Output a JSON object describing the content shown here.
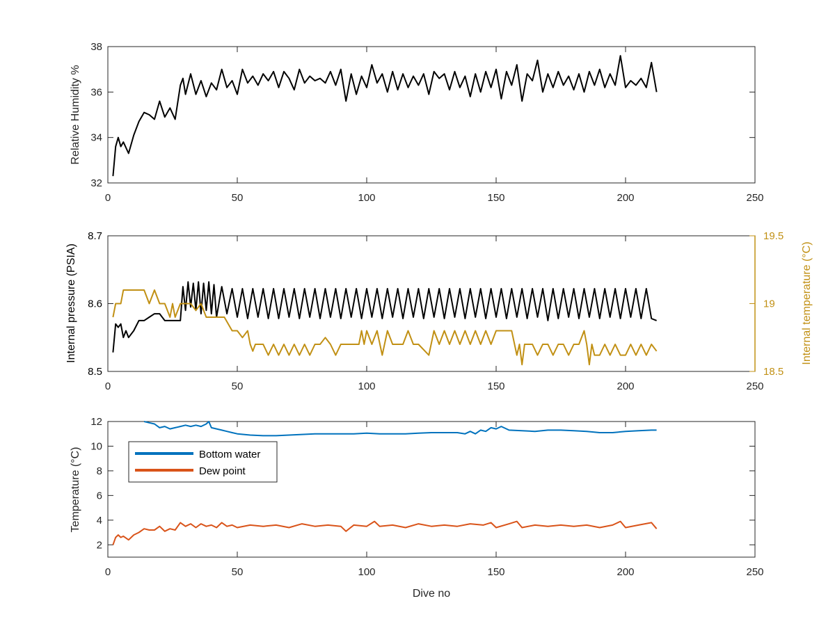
{
  "chart_data": [
    {
      "type": "line",
      "id": "humidity",
      "xlabel": "",
      "ylabel": "Relative Humidity %",
      "xlim": [
        0,
        250
      ],
      "ylim": [
        32,
        38
      ],
      "xticks": [
        0,
        50,
        100,
        150,
        200,
        250
      ],
      "yticks": [
        32,
        34,
        36,
        38
      ],
      "series": [
        {
          "color": "#000000",
          "x": [
            2,
            3,
            4,
            5,
            6,
            8,
            10,
            12,
            14,
            16,
            18,
            20,
            22,
            24,
            26,
            28,
            29,
            30,
            32,
            34,
            36,
            38,
            40,
            42,
            44,
            46,
            48,
            50,
            52,
            54,
            56,
            58,
            60,
            62,
            64,
            66,
            68,
            70,
            72,
            74,
            76,
            78,
            80,
            82,
            84,
            86,
            88,
            90,
            92,
            94,
            96,
            98,
            100,
            102,
            104,
            106,
            108,
            110,
            112,
            114,
            116,
            118,
            120,
            122,
            124,
            126,
            128,
            130,
            132,
            134,
            136,
            138,
            140,
            142,
            144,
            146,
            148,
            150,
            152,
            154,
            156,
            158,
            160,
            162,
            164,
            166,
            168,
            170,
            172,
            174,
            176,
            178,
            180,
            182,
            184,
            186,
            188,
            190,
            192,
            194,
            196,
            198,
            200,
            202,
            204,
            206,
            208,
            210,
            212
          ],
          "y": [
            32.3,
            33.6,
            34.0,
            33.6,
            33.8,
            33.3,
            34.1,
            34.7,
            35.1,
            35.0,
            34.8,
            35.6,
            34.9,
            35.3,
            34.8,
            36.3,
            36.6,
            35.9,
            36.8,
            35.9,
            36.5,
            35.8,
            36.4,
            36.1,
            37.0,
            36.2,
            36.5,
            35.9,
            37.0,
            36.4,
            36.7,
            36.3,
            36.8,
            36.5,
            36.9,
            36.2,
            36.9,
            36.6,
            36.1,
            37.0,
            36.4,
            36.7,
            36.5,
            36.6,
            36.4,
            36.9,
            36.3,
            37.0,
            35.6,
            36.8,
            35.9,
            36.7,
            36.2,
            37.2,
            36.4,
            36.8,
            36.0,
            36.9,
            36.1,
            36.8,
            36.2,
            36.7,
            36.3,
            36.8,
            35.9,
            36.9,
            36.6,
            36.8,
            36.1,
            36.9,
            36.2,
            36.7,
            35.8,
            36.8,
            36.0,
            36.9,
            36.2,
            37.0,
            35.7,
            36.9,
            36.3,
            37.2,
            35.6,
            36.8,
            36.5,
            37.4,
            36.0,
            36.8,
            36.2,
            36.9,
            36.3,
            36.7,
            36.1,
            36.8,
            36.0,
            36.9,
            36.3,
            37.0,
            36.2,
            36.8,
            36.3,
            37.6,
            36.2,
            36.5,
            36.3,
            36.6,
            36.2,
            37.3,
            36.0
          ]
        }
      ]
    },
    {
      "type": "line",
      "id": "pressure",
      "xlabel": "",
      "ylabel": "Internal pressure (PSIA)",
      "ylabel_right": "Internal temperature (°C)",
      "xlim": [
        0,
        250
      ],
      "ylim": [
        8.5,
        8.7
      ],
      "ylim_right": [
        18.5,
        19.5
      ],
      "xticks": [
        0,
        50,
        100,
        150,
        200,
        250
      ],
      "yticks": [
        8.5,
        8.6,
        8.7
      ],
      "yticks_right": [
        18.5,
        19,
        19.5
      ],
      "series": [
        {
          "axis": "left",
          "color": "#000000",
          "x": [
            2,
            3,
            4,
            5,
            6,
            7,
            8,
            10,
            12,
            14,
            16,
            18,
            20,
            22,
            24,
            26,
            28,
            29,
            30,
            31,
            32,
            33,
            34,
            35,
            36,
            37,
            38,
            39,
            40,
            41,
            42,
            44,
            46,
            48,
            50,
            52,
            54,
            56,
            58,
            60,
            62,
            64,
            66,
            68,
            70,
            72,
            74,
            76,
            78,
            80,
            82,
            84,
            86,
            88,
            90,
            92,
            94,
            96,
            98,
            100,
            102,
            104,
            106,
            108,
            110,
            112,
            114,
            116,
            118,
            120,
            122,
            124,
            126,
            128,
            130,
            132,
            134,
            136,
            138,
            140,
            142,
            144,
            146,
            148,
            150,
            152,
            154,
            156,
            158,
            160,
            162,
            164,
            166,
            168,
            170,
            172,
            174,
            176,
            178,
            180,
            182,
            184,
            186,
            188,
            190,
            192,
            194,
            196,
            198,
            200,
            202,
            204,
            206,
            208,
            210,
            212
          ],
          "y": [
            8.528,
            8.57,
            8.565,
            8.57,
            8.55,
            8.56,
            8.55,
            8.56,
            8.575,
            8.575,
            8.58,
            8.585,
            8.585,
            8.575,
            8.575,
            8.575,
            8.575,
            8.625,
            8.59,
            8.632,
            8.595,
            8.63,
            8.59,
            8.632,
            8.585,
            8.63,
            8.59,
            8.632,
            8.585,
            8.628,
            8.58,
            8.625,
            8.585,
            8.622,
            8.58,
            8.622,
            8.578,
            8.622,
            8.58,
            8.622,
            8.578,
            8.622,
            8.578,
            8.622,
            8.58,
            8.622,
            8.578,
            8.622,
            8.58,
            8.622,
            8.578,
            8.622,
            8.58,
            8.622,
            8.578,
            8.622,
            8.58,
            8.622,
            8.578,
            8.622,
            8.58,
            8.622,
            8.578,
            8.622,
            8.58,
            8.622,
            8.578,
            8.622,
            8.58,
            8.622,
            8.578,
            8.622,
            8.58,
            8.622,
            8.578,
            8.622,
            8.58,
            8.622,
            8.578,
            8.622,
            8.58,
            8.622,
            8.578,
            8.622,
            8.58,
            8.622,
            8.578,
            8.622,
            8.58,
            8.622,
            8.578,
            8.622,
            8.58,
            8.622,
            8.575,
            8.622,
            8.578,
            8.622,
            8.58,
            8.622,
            8.578,
            8.622,
            8.58,
            8.622,
            8.578,
            8.622,
            8.58,
            8.622,
            8.578,
            8.622,
            8.58,
            8.622,
            8.578,
            8.622,
            8.578,
            8.575
          ]
        },
        {
          "axis": "right",
          "color": "#C19014",
          "x": [
            2,
            3,
            5,
            6,
            8,
            12,
            14,
            16,
            18,
            20,
            22,
            24,
            25,
            26,
            28,
            30,
            32,
            34,
            36,
            38,
            40,
            42,
            45,
            48,
            50,
            52,
            54,
            55,
            56,
            57,
            58,
            60,
            62,
            64,
            66,
            68,
            70,
            72,
            74,
            76,
            78,
            80,
            82,
            84,
            86,
            88,
            90,
            95,
            97,
            98,
            99,
            100,
            102,
            104,
            106,
            108,
            110,
            112,
            114,
            116,
            118,
            120,
            124,
            126,
            128,
            130,
            132,
            134,
            136,
            138,
            140,
            142,
            144,
            146,
            148,
            150,
            152,
            154,
            156,
            158,
            159,
            160,
            161,
            162,
            164,
            166,
            168,
            170,
            172,
            174,
            176,
            178,
            180,
            182,
            184,
            185,
            186,
            187,
            188,
            190,
            192,
            194,
            196,
            198,
            200,
            202,
            204,
            206,
            208,
            210,
            212
          ],
          "y": [
            18.9,
            19.0,
            19.0,
            19.1,
            19.1,
            19.1,
            19.1,
            19.0,
            19.1,
            19.0,
            19.0,
            18.9,
            19.0,
            18.9,
            19.0,
            19.0,
            19.0,
            18.95,
            19.0,
            18.9,
            18.9,
            18.9,
            18.9,
            18.8,
            18.8,
            18.75,
            18.8,
            18.7,
            18.65,
            18.7,
            18.7,
            18.7,
            18.62,
            18.7,
            18.62,
            18.7,
            18.62,
            18.7,
            18.62,
            18.7,
            18.62,
            18.7,
            18.7,
            18.75,
            18.7,
            18.62,
            18.7,
            18.7,
            18.7,
            18.8,
            18.7,
            18.8,
            18.7,
            18.8,
            18.62,
            18.8,
            18.7,
            18.7,
            18.7,
            18.8,
            18.7,
            18.7,
            18.62,
            18.8,
            18.7,
            18.8,
            18.7,
            18.8,
            18.7,
            18.8,
            18.7,
            18.8,
            18.7,
            18.8,
            18.7,
            18.8,
            18.8,
            18.8,
            18.8,
            18.62,
            18.7,
            18.55,
            18.7,
            18.7,
            18.7,
            18.62,
            18.7,
            18.7,
            18.62,
            18.7,
            18.7,
            18.62,
            18.7,
            18.7,
            18.8,
            18.7,
            18.55,
            18.7,
            18.62,
            18.62,
            18.7,
            18.62,
            18.7,
            18.62,
            18.62,
            18.7,
            18.62,
            18.7,
            18.62,
            18.7,
            18.65
          ]
        }
      ]
    },
    {
      "type": "line",
      "id": "temperature",
      "xlabel": "Dive no",
      "ylabel": "Temperature (°C)",
      "xlim": [
        0,
        250
      ],
      "ylim": [
        1,
        12
      ],
      "xticks": [
        0,
        50,
        100,
        150,
        200,
        250
      ],
      "yticks": [
        2,
        4,
        6,
        8,
        10,
        12
      ],
      "legend_position": "top-left",
      "series": [
        {
          "name": "Bottom water",
          "color": "#0072BD",
          "x": [
            14,
            16,
            18,
            20,
            22,
            24,
            26,
            28,
            30,
            32,
            34,
            36,
            38,
            39,
            40,
            42,
            44,
            46,
            48,
            50,
            55,
            60,
            65,
            70,
            75,
            80,
            85,
            90,
            95,
            100,
            105,
            110,
            115,
            120,
            125,
            130,
            135,
            138,
            140,
            142,
            144,
            146,
            148,
            150,
            152,
            155,
            160,
            165,
            170,
            175,
            180,
            185,
            190,
            195,
            200,
            205,
            210,
            212
          ],
          "y": [
            12.0,
            11.9,
            11.8,
            11.5,
            11.6,
            11.4,
            11.5,
            11.6,
            11.7,
            11.6,
            11.7,
            11.6,
            11.8,
            12.0,
            11.5,
            11.4,
            11.3,
            11.2,
            11.1,
            11.0,
            10.9,
            10.85,
            10.85,
            10.9,
            10.95,
            11.0,
            11.0,
            11.0,
            11.0,
            11.05,
            11.0,
            11.0,
            11.0,
            11.05,
            11.1,
            11.1,
            11.1,
            11.0,
            11.2,
            11.0,
            11.3,
            11.2,
            11.5,
            11.4,
            11.6,
            11.3,
            11.25,
            11.2,
            11.3,
            11.3,
            11.25,
            11.2,
            11.1,
            11.1,
            11.2,
            11.25,
            11.3,
            11.3
          ]
        },
        {
          "name": "Dew point",
          "color": "#D95319",
          "x": [
            2,
            3,
            4,
            5,
            6,
            8,
            10,
            12,
            14,
            16,
            18,
            20,
            22,
            24,
            26,
            28,
            30,
            32,
            34,
            36,
            38,
            40,
            42,
            44,
            46,
            48,
            50,
            55,
            60,
            65,
            70,
            75,
            80,
            85,
            90,
            92,
            95,
            100,
            103,
            105,
            110,
            115,
            120,
            125,
            130,
            135,
            140,
            145,
            148,
            150,
            155,
            158,
            160,
            165,
            170,
            175,
            180,
            185,
            190,
            195,
            198,
            200,
            205,
            210,
            212
          ],
          "y": [
            2.0,
            2.6,
            2.8,
            2.6,
            2.7,
            2.4,
            2.8,
            3.0,
            3.3,
            3.2,
            3.2,
            3.5,
            3.1,
            3.3,
            3.2,
            3.8,
            3.5,
            3.7,
            3.4,
            3.7,
            3.5,
            3.6,
            3.4,
            3.8,
            3.5,
            3.6,
            3.4,
            3.6,
            3.5,
            3.6,
            3.4,
            3.7,
            3.5,
            3.6,
            3.5,
            3.1,
            3.6,
            3.5,
            3.9,
            3.5,
            3.6,
            3.4,
            3.7,
            3.5,
            3.6,
            3.5,
            3.7,
            3.6,
            3.8,
            3.4,
            3.7,
            3.9,
            3.4,
            3.6,
            3.5,
            3.6,
            3.5,
            3.6,
            3.4,
            3.6,
            3.9,
            3.4,
            3.6,
            3.8,
            3.3
          ]
        }
      ]
    }
  ],
  "panels": {
    "humidity": {
      "ylabel": "Relative Humidity %"
    },
    "pressure": {
      "ylabel": "Internal pressure (PSIA)",
      "ylabel_right": "Internal temperature (°C)"
    },
    "temperature": {
      "ylabel": "Temperature (°C)",
      "xlabel": "Dive no"
    }
  },
  "legend": {
    "bottom_water": "Bottom water",
    "dew_point": "Dew point"
  }
}
